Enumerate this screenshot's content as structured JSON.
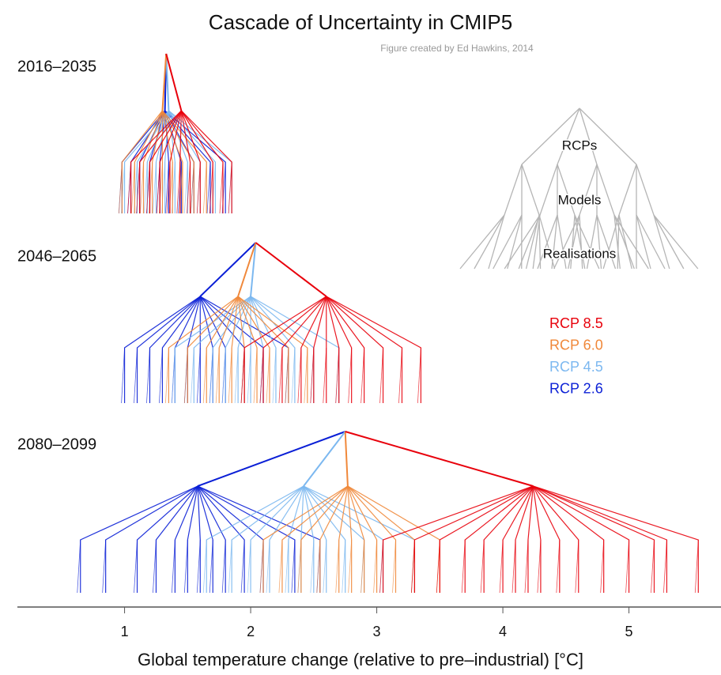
{
  "chart_data": {
    "type": "cascade",
    "title": "Cascade of Uncertainty in CMIP5",
    "subtitle": "Figure created by Ed Hawkins, 2014",
    "x_label": "Global temperature change (relative to pre–industrial)  [°C]",
    "xlim": [
      0.15,
      5.73
    ],
    "xticks": [
      1,
      2,
      3,
      4,
      5
    ],
    "series": [
      {
        "name": "RCP 8.5",
        "color": "#e8000b"
      },
      {
        "name": "RCP 6.0",
        "color": "#f0883a"
      },
      {
        "name": "RCP 4.5",
        "color": "#7cb8f0"
      },
      {
        "name": "RCP 2.6",
        "color": "#0a1fd6"
      }
    ],
    "schematic_labels": [
      "RCPs",
      "Models",
      "Realisations"
    ],
    "periods": [
      {
        "label": "2016–2035",
        "mean": 1.33,
        "rcps": [
          {
            "value": 1.45,
            "models": [
              1.05,
              1.12,
              1.2,
              1.28,
              1.36,
              1.44,
              1.52,
              1.6,
              1.7,
              1.78,
              1.85
            ]
          },
          {
            "value": 1.3,
            "models": [
              0.98,
              1.08,
              1.15,
              1.22,
              1.3,
              1.38,
              1.46,
              1.55,
              1.65
            ]
          },
          {
            "value": 1.35,
            "models": [
              1.0,
              1.1,
              1.18,
              1.25,
              1.32,
              1.4,
              1.5,
              1.6,
              1.72,
              1.85
            ]
          },
          {
            "value": 1.32,
            "models": [
              0.98,
              1.05,
              1.12,
              1.2,
              1.28,
              1.35,
              1.45,
              1.55,
              1.68,
              1.8
            ]
          }
        ]
      },
      {
        "label": "2046–2065",
        "mean": 2.04,
        "rcps": [
          {
            "value": 2.6,
            "models": [
              1.95,
              2.1,
              2.25,
              2.4,
              2.5,
              2.6,
              2.7,
              2.8,
              2.9,
              3.05,
              3.2,
              3.35
            ]
          },
          {
            "value": 1.9,
            "models": [
              1.35,
              1.5,
              1.65,
              1.75,
              1.85,
              1.95,
              2.05,
              2.15,
              2.3,
              2.45
            ]
          },
          {
            "value": 2.0,
            "models": [
              1.4,
              1.55,
              1.7,
              1.8,
              1.9,
              2.0,
              2.1,
              2.2,
              2.35,
              2.5,
              2.7
            ]
          },
          {
            "value": 1.6,
            "models": [
              1.0,
              1.1,
              1.2,
              1.3,
              1.4,
              1.5,
              1.6,
              1.7,
              1.8,
              1.95,
              2.1,
              2.3
            ]
          }
        ]
      },
      {
        "label": "2080–2099",
        "mean": 2.75,
        "rcps": [
          {
            "value": 4.24,
            "models": [
              3.05,
              3.3,
              3.5,
              3.7,
              3.85,
              4.0,
              4.1,
              4.2,
              4.3,
              4.45,
              4.6,
              4.8,
              5.0,
              5.2,
              5.3,
              5.55
            ]
          },
          {
            "value": 2.77,
            "models": [
              2.1,
              2.25,
              2.4,
              2.55,
              2.7,
              2.8,
              2.9,
              3.0,
              3.15,
              3.3,
              3.5
            ]
          },
          {
            "value": 2.42,
            "models": [
              1.65,
              1.85,
              2.0,
              2.15,
              2.3,
              2.4,
              2.5,
              2.6,
              2.75,
              2.9,
              3.05,
              3.3
            ]
          },
          {
            "value": 1.58,
            "models": [
              0.65,
              0.85,
              1.1,
              1.25,
              1.4,
              1.5,
              1.6,
              1.7,
              1.8,
              1.95,
              2.1,
              2.35,
              2.55
            ]
          }
        ]
      }
    ]
  }
}
